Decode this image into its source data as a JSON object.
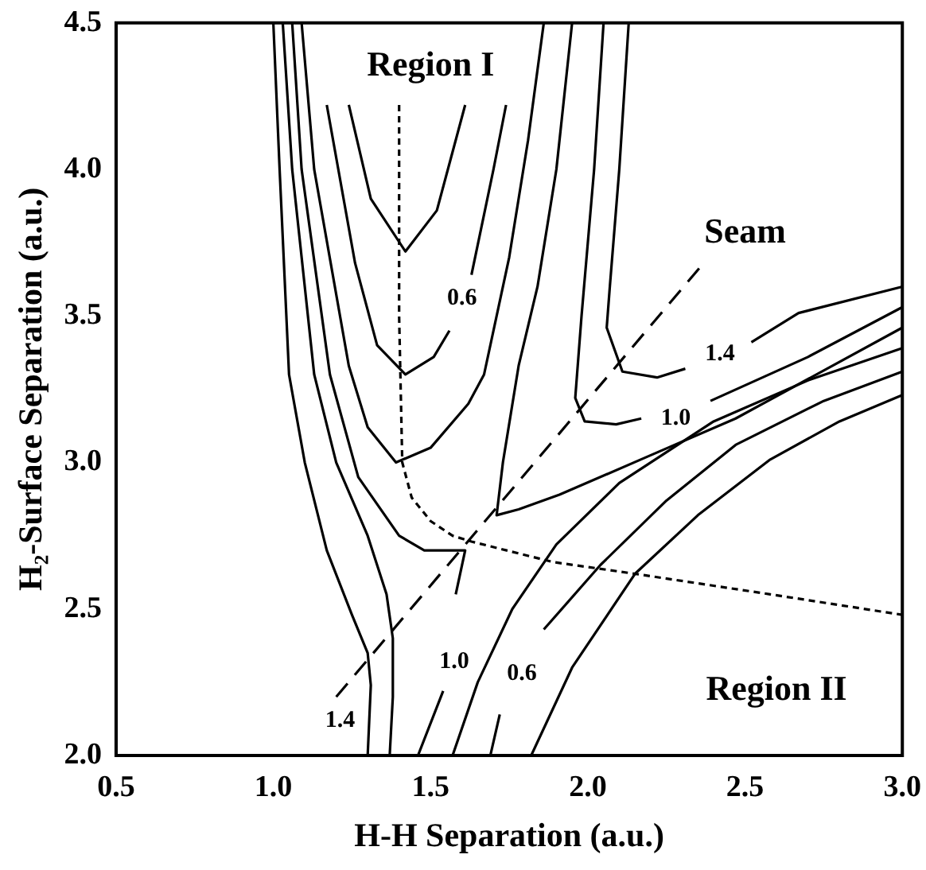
{
  "chart_data": {
    "type": "line",
    "xlabel": "H-H Separation (a.u.)",
    "ylabel": "H₂-Surface Separation (a.u.)",
    "xlim": [
      0.5,
      3.0
    ],
    "ylim": [
      2.0,
      4.5
    ],
    "xticks": [
      0.5,
      {
        "value": 1,
        "label": "1.0"
      },
      1.5,
      {
        "value": 2,
        "label": "2.0"
      },
      2.5,
      {
        "value": 3,
        "label": "3.0"
      }
    ],
    "yticks": [
      {
        "value": 2,
        "label": "2.0"
      },
      2.5,
      {
        "value": 3,
        "label": "3.0"
      },
      3.5,
      {
        "value": 4,
        "label": "4.0"
      },
      4.5
    ],
    "grid": false,
    "legend": false,
    "marker": "none",
    "series": [
      {
        "color": "#000000",
        "x": [
          1.0,
          1.02,
          1.05,
          1.1,
          1.17,
          1.25,
          1.3,
          1.31,
          1.3
        ],
        "values": [
          4.5,
          4.0,
          3.3,
          3.0,
          2.7,
          2.48,
          2.35,
          2.24,
          2.0
        ]
      },
      {
        "color": "#000000",
        "x": [
          1.03,
          1.06,
          1.13,
          1.2,
          1.3,
          1.36,
          1.38,
          1.38,
          1.37
        ],
        "values": [
          4.5,
          4.0,
          3.3,
          3.0,
          2.75,
          2.55,
          2.4,
          2.2,
          2.0
        ]
      },
      {
        "color": "#000000",
        "x": [
          1.06,
          1.09,
          1.18,
          1.27,
          1.4,
          1.48,
          1.61,
          1.58,
          1.56,
          1.54,
          1.46
        ],
        "values": [
          4.5,
          4.0,
          3.3,
          2.95,
          2.75,
          2.7,
          2.7,
          2.55,
          null,
          2.22,
          2.0
        ]
      },
      {
        "color": "#000000",
        "x": [
          1.09,
          1.13,
          1.24,
          1.3,
          1.39,
          1.5,
          1.62,
          1.67,
          1.75,
          1.81,
          1.86
        ],
        "values": [
          4.5,
          4.0,
          3.33,
          3.12,
          3.0,
          3.05,
          3.2,
          3.3,
          3.7,
          4.1,
          4.5
        ]
      },
      {
        "color": "#000000",
        "x": [
          1.17,
          1.26,
          1.33,
          1.42,
          1.51,
          1.56,
          1.6,
          1.63,
          1.7,
          1.74
        ],
        "values": [
          4.22,
          3.68,
          3.4,
          3.3,
          3.36,
          3.45,
          null,
          3.64,
          4.0,
          4.22
        ]
      },
      {
        "color": "#000000",
        "x": [
          1.24,
          1.31,
          1.42,
          1.52,
          1.61
        ],
        "values": [
          4.22,
          3.9,
          3.72,
          3.86,
          4.22
        ]
      },
      {
        "color": "#000000",
        "x": [
          1.95,
          1.9,
          1.84,
          1.78,
          1.73,
          1.71,
          1.78,
          1.91,
          2.19,
          2.47,
          3.0
        ],
        "values": [
          4.5,
          4.0,
          3.6,
          3.33,
          3.0,
          2.82,
          2.84,
          2.89,
          3.02,
          3.15,
          3.46
        ]
      },
      {
        "color": "#000000",
        "x": [
          2.05,
          2.02,
          1.98,
          1.96,
          1.99,
          2.09,
          2.17,
          2.28,
          2.39,
          2.7,
          3.0
        ],
        "values": [
          4.5,
          4.0,
          3.5,
          3.22,
          3.14,
          3.13,
          3.15,
          null,
          3.21,
          3.36,
          3.53
        ]
      },
      {
        "color": "#000000",
        "x": [
          2.13,
          2.1,
          2.07,
          2.06,
          2.11,
          2.22,
          2.31,
          2.42,
          2.52,
          2.67,
          3.0
        ],
        "values": [
          4.5,
          4.0,
          3.6,
          3.46,
          3.31,
          3.29,
          3.32,
          null,
          3.41,
          3.51,
          3.6
        ]
      },
      {
        "color": "#000000",
        "x": [
          1.57,
          1.65,
          1.76,
          1.9,
          2.1,
          2.4,
          2.7,
          3.0
        ],
        "values": [
          2.0,
          2.25,
          2.5,
          2.72,
          2.93,
          3.14,
          3.28,
          3.39
        ]
      },
      {
        "color": "#000000",
        "x": [
          1.69,
          1.72,
          1.79,
          1.86,
          2.04,
          2.25,
          2.47,
          2.75,
          3.0
        ],
        "values": [
          2.0,
          2.14,
          null,
          2.43,
          2.65,
          2.87,
          3.06,
          3.21,
          3.31
        ]
      },
      {
        "color": "#000000",
        "x": [
          1.82,
          1.95,
          2.15,
          2.35,
          2.58,
          2.8,
          3.0
        ],
        "values": [
          2.0,
          2.3,
          2.62,
          2.82,
          3.01,
          3.14,
          3.23
        ]
      },
      {
        "color": "#000000",
        "line_style": "dotted",
        "x": [
          1.4,
          1.4,
          1.41,
          1.44,
          1.5,
          1.57,
          1.63,
          1.89,
          2.15,
          2.58,
          3.0
        ],
        "values": [
          4.22,
          3.5,
          3.0,
          2.88,
          2.8,
          2.75,
          2.73,
          2.66,
          2.62,
          2.55,
          2.48
        ]
      },
      {
        "color": "#000000",
        "line_style": "dashed",
        "x": [
          1.2,
          2.36
        ],
        "values": [
          2.2,
          3.67
        ]
      }
    ],
    "annotations": [
      "Region I",
      "Seam",
      "Region II",
      "0.6",
      "1.4",
      "1.0",
      "1.4",
      "1.0",
      "0.6"
    ]
  }
}
